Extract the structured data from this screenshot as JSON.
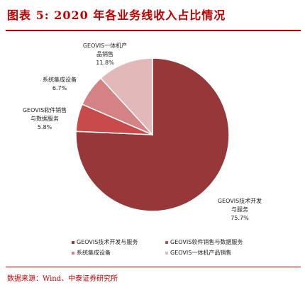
{
  "figure": {
    "title": "图表 5:   2020 年各业务线收入占比情况",
    "source": "数据来源：Wind、中泰证券研究所"
  },
  "chart_data": {
    "type": "pie",
    "title": "",
    "slices": [
      {
        "name": "GEOVIS技术开发与服务",
        "label_lines": [
          "GEOVIS技术开发",
          "与服务"
        ],
        "value": 75.7,
        "value_label": "75.7%",
        "color": "#96383a"
      },
      {
        "name": "GEOVIS软件销售与数据服务",
        "label_lines": [
          "GEOVIS软件销售",
          "与数据服务"
        ],
        "value": 5.8,
        "value_label": "5.8%",
        "color": "#c84a4a"
      },
      {
        "name": "系统集成设备",
        "label_lines": [
          "系统集成设备"
        ],
        "value": 6.7,
        "value_label": "6.7%",
        "color": "#d48283"
      },
      {
        "name": "GEOVIS一体机产品销售",
        "label_lines": [
          "GEOVIS一体机产",
          "品销售"
        ],
        "value": 11.8,
        "value_label": "11.8%",
        "color": "#e2b8b9"
      }
    ],
    "legend_position": "bottom"
  }
}
